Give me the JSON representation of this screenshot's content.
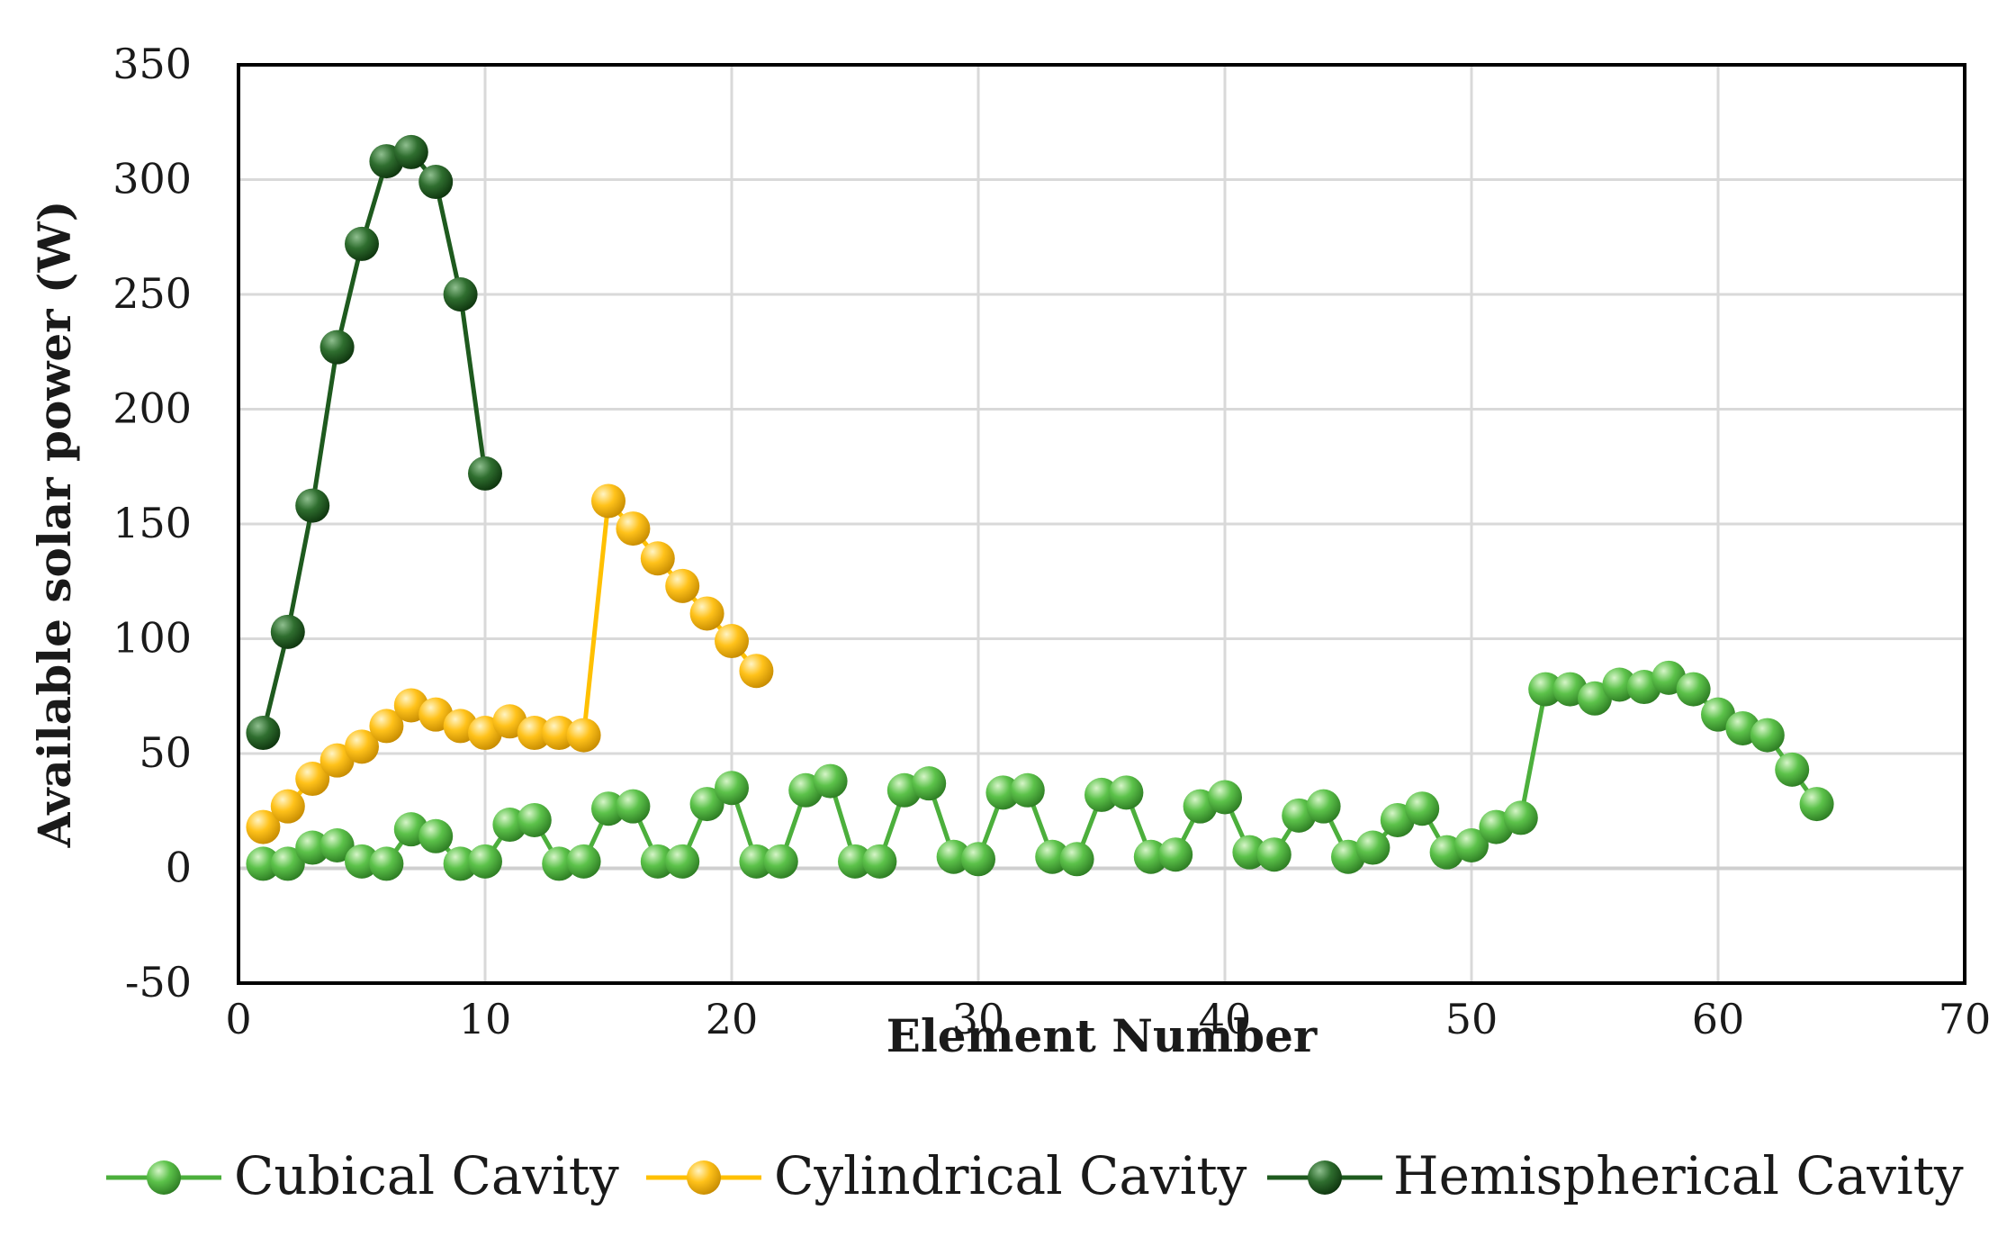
{
  "chart_data": {
    "type": "line",
    "title": "",
    "xlabel": "Element Number",
    "ylabel": "Available solar power (W)",
    "xlim": [
      0,
      70
    ],
    "ylim": [
      -50,
      350
    ],
    "xticks": [
      0,
      10,
      20,
      30,
      40,
      50,
      60,
      70
    ],
    "yticks": [
      -50,
      0,
      50,
      100,
      150,
      200,
      250,
      300,
      350
    ],
    "grid": true,
    "legend_position": "bottom",
    "series": [
      {
        "name": "Cubical Cavity",
        "color": "#4caf3c",
        "x": [
          1,
          2,
          3,
          4,
          5,
          6,
          7,
          8,
          9,
          10,
          11,
          12,
          13,
          14,
          15,
          16,
          17,
          18,
          19,
          20,
          21,
          22,
          23,
          24,
          25,
          26,
          27,
          28,
          29,
          30,
          31,
          32,
          33,
          34,
          35,
          36,
          37,
          38,
          39,
          40,
          41,
          42,
          43,
          44,
          45,
          46,
          47,
          48,
          49,
          50,
          51,
          52,
          53,
          54,
          55,
          56,
          57,
          58,
          59,
          60,
          61,
          62,
          63,
          64
        ],
        "y": [
          2,
          2,
          9,
          10,
          3,
          2,
          17,
          14,
          2,
          3,
          19,
          21,
          2,
          3,
          26,
          27,
          3,
          3,
          28,
          35,
          3,
          3,
          34,
          38,
          3,
          3,
          34,
          37,
          5,
          4,
          33,
          34,
          5,
          4,
          32,
          33,
          5,
          6,
          27,
          31,
          7,
          6,
          23,
          27,
          5,
          9,
          21,
          26,
          7,
          10,
          18,
          22,
          78,
          78,
          74,
          80,
          79,
          83,
          78,
          67,
          61,
          58,
          43,
          28
        ]
      },
      {
        "name": "Cylindrical Cavity",
        "color": "#ffc000",
        "x": [
          1,
          2,
          3,
          4,
          5,
          6,
          7,
          8,
          9,
          10,
          11,
          12,
          13,
          14,
          15,
          16,
          17,
          18,
          19,
          20,
          21
        ],
        "y": [
          18,
          27,
          39,
          47,
          53,
          62,
          71,
          67,
          62,
          59,
          64,
          59,
          59,
          58,
          160,
          148,
          135,
          123,
          111,
          99,
          86
        ]
      },
      {
        "name": "Hemispherical Cavity",
        "color": "#1e5a1e",
        "x": [
          1,
          2,
          3,
          4,
          5,
          6,
          7,
          8,
          9,
          10
        ],
        "y": [
          59,
          103,
          158,
          227,
          272,
          308,
          312,
          299,
          250,
          172
        ]
      }
    ]
  }
}
